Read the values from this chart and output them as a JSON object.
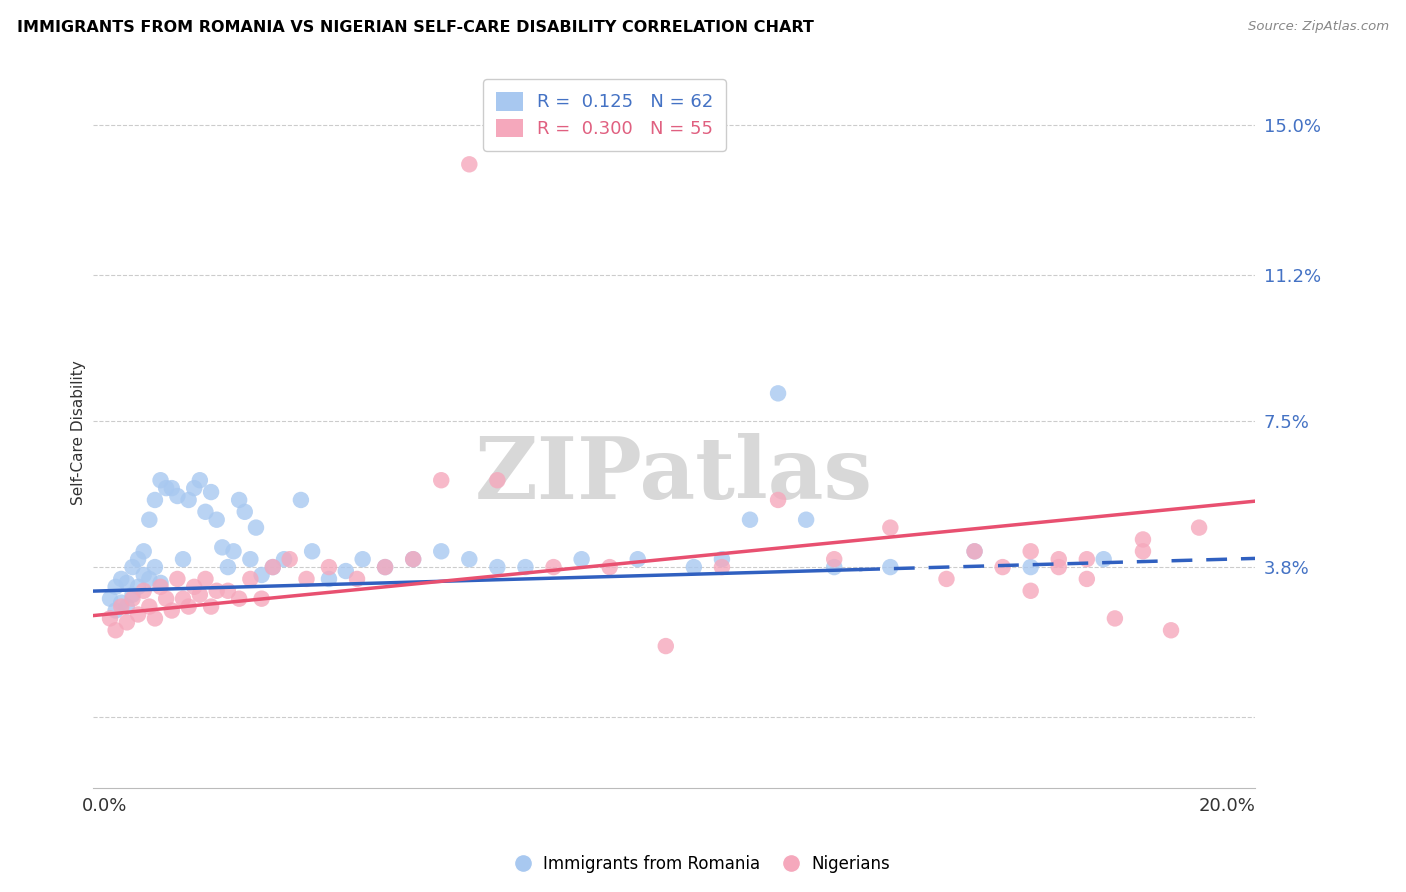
{
  "title": "IMMIGRANTS FROM ROMANIA VS NIGERIAN SELF-CARE DISABILITY CORRELATION CHART",
  "source": "Source: ZipAtlas.com",
  "ylabel": "Self-Care Disability",
  "yticks": [
    0.0,
    0.038,
    0.075,
    0.112,
    0.15
  ],
  "ytick_labels": [
    "",
    "3.8%",
    "7.5%",
    "11.2%",
    "15.0%"
  ],
  "xticks": [
    0.0,
    0.05,
    0.1,
    0.15,
    0.2
  ],
  "xtick_labels": [
    "0.0%",
    "",
    "",
    "",
    "20.0%"
  ],
  "xlim": [
    -0.002,
    0.205
  ],
  "ylim": [
    -0.018,
    0.162
  ],
  "legend_R1": "0.125",
  "legend_N1": "62",
  "legend_R2": "0.300",
  "legend_N2": "55",
  "color_blue": "#a8c8f0",
  "color_pink": "#f5a8bc",
  "color_blue_line": "#3060c0",
  "color_pink_line": "#e85070",
  "color_blue_label": "#4472c4",
  "color_pink_label": "#e06080",
  "watermark": "ZIPatlas",
  "blue_line": [
    0.0,
    0.032,
    0.2,
    0.04
  ],
  "blue_line_solid_end": 0.135,
  "pink_line": [
    0.0,
    0.026,
    0.2,
    0.054
  ],
  "blue_x": [
    0.001,
    0.002,
    0.002,
    0.003,
    0.003,
    0.004,
    0.004,
    0.005,
    0.005,
    0.006,
    0.006,
    0.007,
    0.007,
    0.008,
    0.008,
    0.009,
    0.009,
    0.01,
    0.01,
    0.011,
    0.012,
    0.013,
    0.014,
    0.015,
    0.016,
    0.017,
    0.018,
    0.019,
    0.02,
    0.021,
    0.022,
    0.023,
    0.024,
    0.025,
    0.026,
    0.027,
    0.028,
    0.03,
    0.032,
    0.035,
    0.037,
    0.04,
    0.043,
    0.046,
    0.05,
    0.055,
    0.06,
    0.065,
    0.07,
    0.075,
    0.085,
    0.095,
    0.105,
    0.11,
    0.115,
    0.12,
    0.125,
    0.13,
    0.14,
    0.155,
    0.165,
    0.178
  ],
  "blue_y": [
    0.03,
    0.027,
    0.033,
    0.029,
    0.035,
    0.028,
    0.034,
    0.031,
    0.038,
    0.033,
    0.04,
    0.036,
    0.042,
    0.035,
    0.05,
    0.038,
    0.055,
    0.034,
    0.06,
    0.058,
    0.058,
    0.056,
    0.04,
    0.055,
    0.058,
    0.06,
    0.052,
    0.057,
    0.05,
    0.043,
    0.038,
    0.042,
    0.055,
    0.052,
    0.04,
    0.048,
    0.036,
    0.038,
    0.04,
    0.055,
    0.042,
    0.035,
    0.037,
    0.04,
    0.038,
    0.04,
    0.042,
    0.04,
    0.038,
    0.038,
    0.04,
    0.04,
    0.038,
    0.04,
    0.05,
    0.082,
    0.05,
    0.038,
    0.038,
    0.042,
    0.038,
    0.04
  ],
  "pink_x": [
    0.001,
    0.002,
    0.003,
    0.004,
    0.005,
    0.006,
    0.007,
    0.008,
    0.009,
    0.01,
    0.011,
    0.012,
    0.013,
    0.014,
    0.015,
    0.016,
    0.017,
    0.018,
    0.019,
    0.02,
    0.022,
    0.024,
    0.026,
    0.028,
    0.03,
    0.033,
    0.036,
    0.04,
    0.045,
    0.05,
    0.055,
    0.06,
    0.065,
    0.07,
    0.08,
    0.09,
    0.1,
    0.11,
    0.12,
    0.13,
    0.14,
    0.15,
    0.155,
    0.16,
    0.165,
    0.17,
    0.175,
    0.18,
    0.185,
    0.19,
    0.165,
    0.17,
    0.175,
    0.185,
    0.195
  ],
  "pink_y": [
    0.025,
    0.022,
    0.028,
    0.024,
    0.03,
    0.026,
    0.032,
    0.028,
    0.025,
    0.033,
    0.03,
    0.027,
    0.035,
    0.03,
    0.028,
    0.033,
    0.031,
    0.035,
    0.028,
    0.032,
    0.032,
    0.03,
    0.035,
    0.03,
    0.038,
    0.04,
    0.035,
    0.038,
    0.035,
    0.038,
    0.04,
    0.06,
    0.14,
    0.06,
    0.038,
    0.038,
    0.018,
    0.038,
    0.055,
    0.04,
    0.048,
    0.035,
    0.042,
    0.038,
    0.032,
    0.038,
    0.04,
    0.025,
    0.045,
    0.022,
    0.042,
    0.04,
    0.035,
    0.042,
    0.048
  ]
}
